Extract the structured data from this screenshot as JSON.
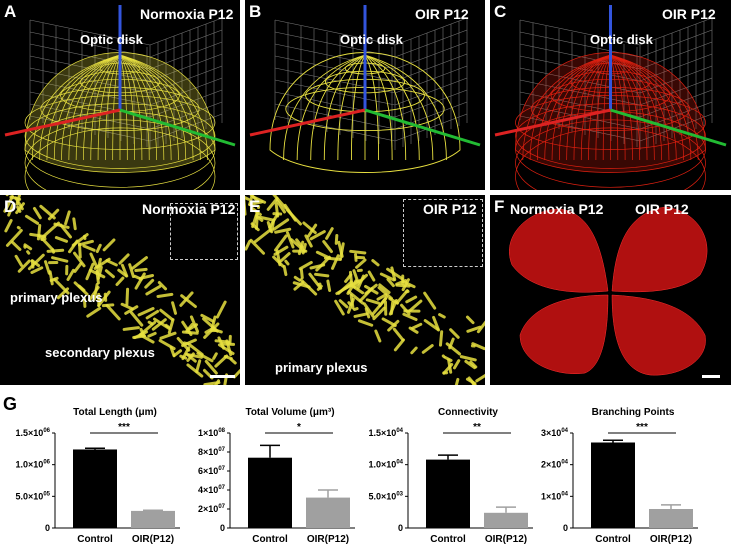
{
  "panels": {
    "A": {
      "label": "A",
      "title": "Normoxia P12",
      "annotation": "Optic disk"
    },
    "B": {
      "label": "B",
      "title": "OIR P12",
      "annotation": "Optic disk"
    },
    "C": {
      "label": "C",
      "title": "OIR P12",
      "annotation": "Optic disk"
    },
    "D": {
      "label": "D",
      "title": "Normoxia P12",
      "ann1": "primary plexus",
      "ann2": "secondary plexus"
    },
    "E": {
      "label": "E",
      "title": "OIR P12",
      "ann1": "primary plexus"
    },
    "F": {
      "label": "F",
      "title1": "Normoxia P12",
      "title2": "OIR P12"
    }
  },
  "colors": {
    "vessel_yellow": "#e8e040",
    "vessel_red": "#e02010",
    "bar_control": "#000000",
    "bar_oir": "#a0a0a0"
  },
  "g_label": "G",
  "chart_data": [
    {
      "type": "bar",
      "title": "Total Length (μm)",
      "categories": [
        "Control",
        "OIR(P12)"
      ],
      "values": [
        1240000,
        270000
      ],
      "errors": [
        20000,
        10000
      ],
      "ylim": [
        0,
        1500000
      ],
      "significance": "***",
      "ticks": [
        {
          "v": 0,
          "base": "0",
          "exp": ""
        },
        {
          "v": 500000,
          "base": "5.0×10",
          "exp": "05"
        },
        {
          "v": 1000000,
          "base": "1.0×10",
          "exp": "06"
        },
        {
          "v": 1500000,
          "base": "1.5×10",
          "exp": "06"
        }
      ]
    },
    {
      "type": "bar",
      "title": "Total Volume (μm³)",
      "categories": [
        "Control",
        "OIR(P12)"
      ],
      "values": [
        74000000,
        32000000
      ],
      "errors": [
        13000000,
        8000000
      ],
      "ylim": [
        0,
        100000000
      ],
      "significance": "*",
      "ticks": [
        {
          "v": 0,
          "base": "0",
          "exp": ""
        },
        {
          "v": 20000000,
          "base": "2×10",
          "exp": "07"
        },
        {
          "v": 40000000,
          "base": "4×10",
          "exp": "07"
        },
        {
          "v": 60000000,
          "base": "6×10",
          "exp": "07"
        },
        {
          "v": 80000000,
          "base": "8×10",
          "exp": "07"
        },
        {
          "v": 100000000,
          "base": "1×10",
          "exp": "08"
        }
      ]
    },
    {
      "type": "bar",
      "title": "Connectivity",
      "categories": [
        "Control",
        "OIR(P12)"
      ],
      "values": [
        10800,
        2400
      ],
      "errors": [
        700,
        900
      ],
      "ylim": [
        0,
        15000
      ],
      "significance": "**",
      "ticks": [
        {
          "v": 0,
          "base": "0",
          "exp": ""
        },
        {
          "v": 5000,
          "base": "5.0×10",
          "exp": "03"
        },
        {
          "v": 10000,
          "base": "1.0×10",
          "exp": "04"
        },
        {
          "v": 15000,
          "base": "1.5×10",
          "exp": "04"
        }
      ]
    },
    {
      "type": "bar",
      "title": "Branching Points",
      "categories": [
        "Control",
        "OIR(P12)"
      ],
      "values": [
        27000,
        6000
      ],
      "errors": [
        700,
        1300
      ],
      "ylim": [
        0,
        30000
      ],
      "significance": "***",
      "ticks": [
        {
          "v": 0,
          "base": "0",
          "exp": ""
        },
        {
          "v": 10000,
          "base": "1×10",
          "exp": "04"
        },
        {
          "v": 20000,
          "base": "2×10",
          "exp": "04"
        },
        {
          "v": 30000,
          "base": "3×10",
          "exp": "04"
        }
      ]
    }
  ]
}
